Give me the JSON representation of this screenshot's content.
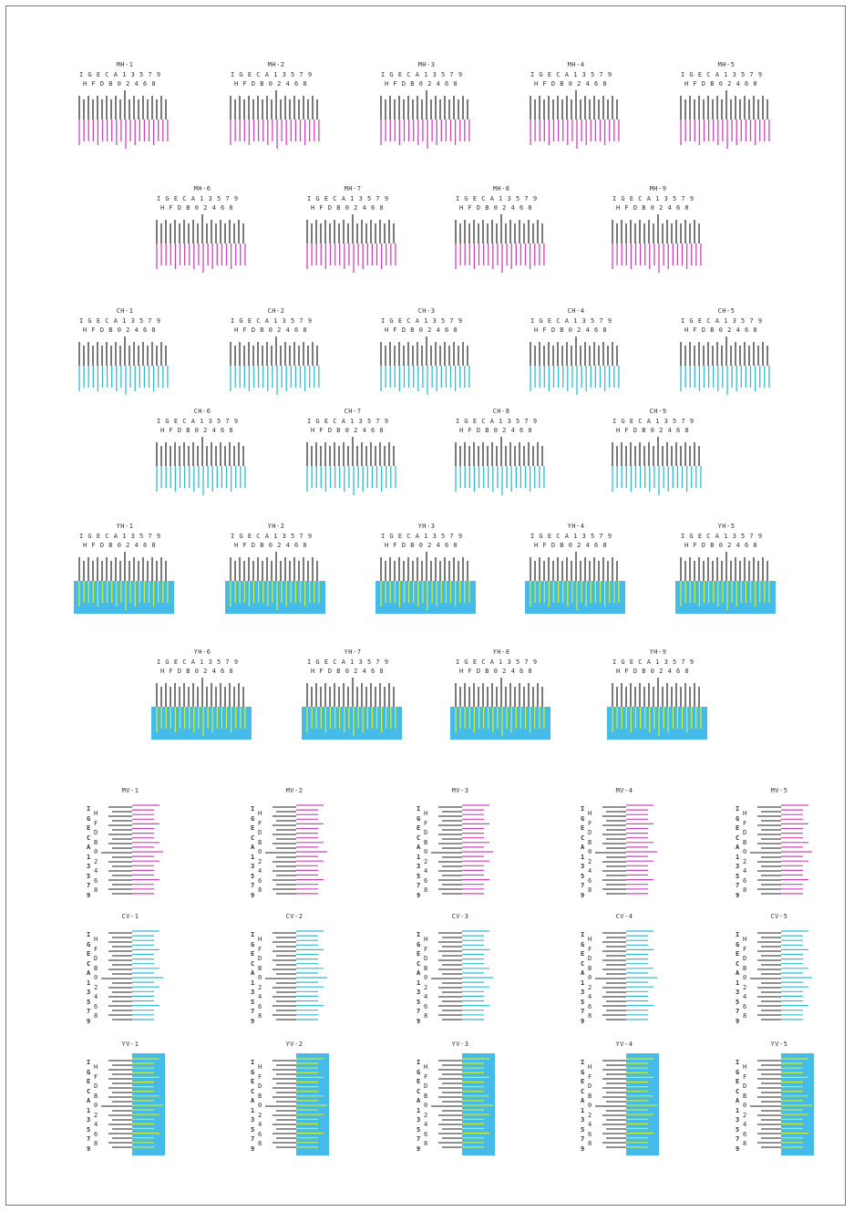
{
  "colors": {
    "ink": "#222222",
    "magenta": "#cc44bb",
    "cyan": "#33bbcc",
    "yellow": "#ccee33",
    "cyan_fill": "#44bbe8",
    "label": "#333333"
  },
  "scale_labels": {
    "upper_row": "I G E C A 1 3 5 7 9",
    "lower_row": "H F D B 0 2 4 6 8",
    "vertical_left": [
      "I",
      "G",
      "E",
      "C",
      "A",
      "1",
      "3",
      "5",
      "7",
      "9"
    ],
    "vertical_right": [
      "H",
      "F",
      "D",
      "B",
      "0",
      "2",
      "4",
      "6",
      "8"
    ]
  },
  "horizontal_groups": [
    {
      "name": "magenta",
      "color": "magenta",
      "fill": false,
      "rows": [
        [
          "MH-1",
          "MH-2",
          "MH-3",
          "MH-4",
          "MH-5"
        ],
        [
          "MH-6",
          "MH-7",
          "MH-8",
          "MH-9"
        ]
      ]
    },
    {
      "name": "cyan",
      "color": "cyan",
      "fill": false,
      "rows": [
        [
          "CH-1",
          "CH-2",
          "CH-3",
          "CH-4",
          "CH-5"
        ],
        [
          "CH-6",
          "CH-7",
          "CH-8",
          "CH-9"
        ]
      ]
    },
    {
      "name": "yellow",
      "color": "yellow",
      "fill": true,
      "rows": [
        [
          "YH-1",
          "YH-2",
          "YH-3",
          "YH-4",
          "YH-5"
        ],
        [
          "YH-6",
          "YH-7",
          "YH-8",
          "YH-9"
        ]
      ]
    }
  ],
  "vertical_groups": [
    {
      "name": "magenta",
      "color": "magenta",
      "fill": false,
      "labels": [
        "MV-1",
        "MV-2",
        "MV-3",
        "MV-4",
        "MV-5"
      ]
    },
    {
      "name": "cyan",
      "color": "cyan",
      "fill": false,
      "labels": [
        "CV-1",
        "CV-2",
        "CV-3",
        "CV-4",
        "CV-5"
      ]
    },
    {
      "name": "yellow",
      "color": "yellow",
      "fill": true,
      "labels": [
        "YV-1",
        "YV-2",
        "YV-3",
        "YV-4",
        "YV-5"
      ]
    }
  ]
}
